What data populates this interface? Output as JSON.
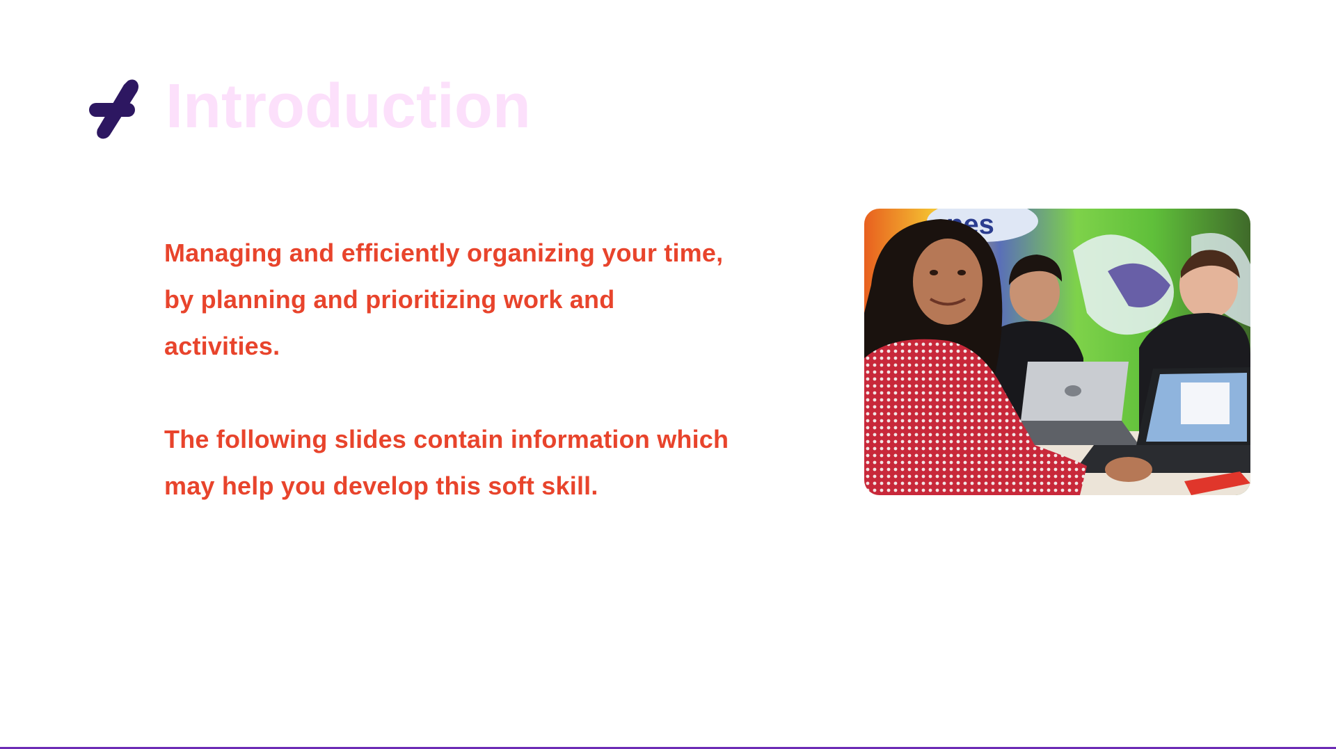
{
  "slide": {
    "title": "Introduction",
    "paragraphs": [
      "Managing and efficiently organizing your time, by planning and prioritizing work and activities.",
      "The following slides contain information which may help you develop this soft skill."
    ]
  },
  "logo": {
    "icon": "brand-mark-icon",
    "color": "#2d1761"
  },
  "colors": {
    "title": "#fce0fb",
    "body_text": "#e8442c",
    "bottom_rule": "#6c2bb5"
  },
  "photo": {
    "description_icon": "classroom-photo"
  }
}
